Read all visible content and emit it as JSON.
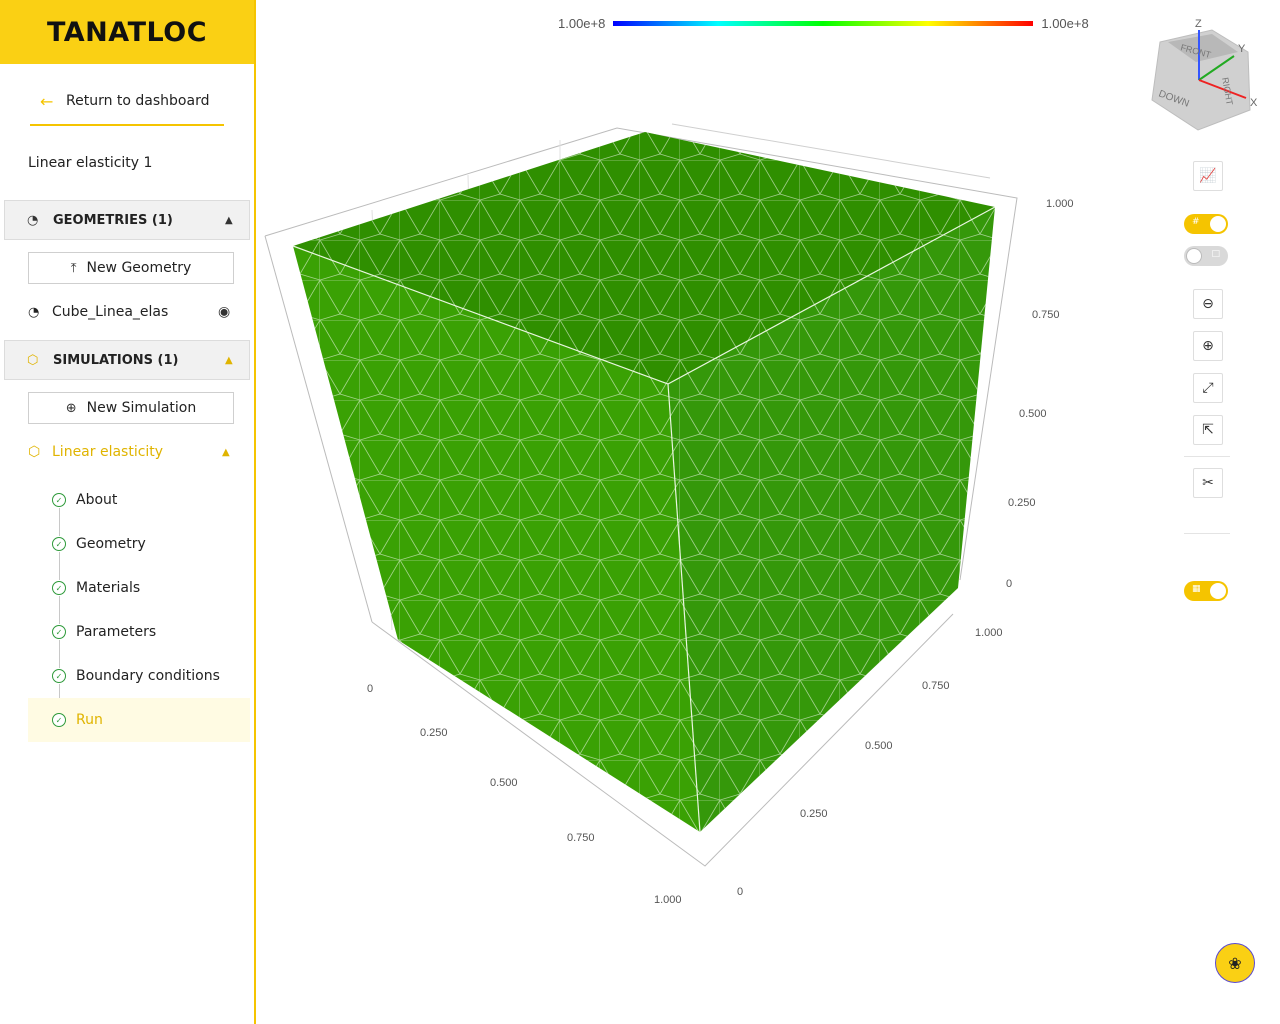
{
  "brand": {
    "logo_text": "TANATLOC"
  },
  "sidebar": {
    "back_label": "Return to dashboard",
    "project_title": "Linear elasticity 1",
    "geometries": {
      "title": "GEOMETRIES (1)",
      "new_label": "New Geometry",
      "items": [
        {
          "name": "Cube_Linea_elas"
        }
      ]
    },
    "simulations": {
      "title": "SIMULATIONS (1)",
      "new_label": "New Simulation",
      "items": [
        {
          "name": "Linear elasticity"
        }
      ]
    },
    "steps": [
      {
        "label": "About"
      },
      {
        "label": "Geometry"
      },
      {
        "label": "Materials"
      },
      {
        "label": "Parameters"
      },
      {
        "label": "Boundary conditions"
      },
      {
        "label": "Run"
      }
    ]
  },
  "viewer": {
    "colorbar": {
      "min": "1.00e+8",
      "max": "1.00e+8"
    },
    "axes": {
      "z_ticks": [
        "1.000",
        "0.750",
        "0.500",
        "0.250",
        "0"
      ],
      "x_ticks": [
        "0",
        "0.250",
        "0.500",
        "0.750",
        "1.000"
      ],
      "y_ticks": [
        "1.000",
        "0.750",
        "0.500",
        "0.250",
        "0"
      ]
    },
    "orientation_cube": {
      "axis_labels": {
        "x": "X",
        "y": "Y",
        "z": "Z"
      },
      "face_labels": {
        "front": "FRONT",
        "right": "RIGHT",
        "down": "DOWN"
      }
    },
    "colors": {
      "accent": "#f5c400",
      "mesh": "#3a9c00"
    }
  }
}
